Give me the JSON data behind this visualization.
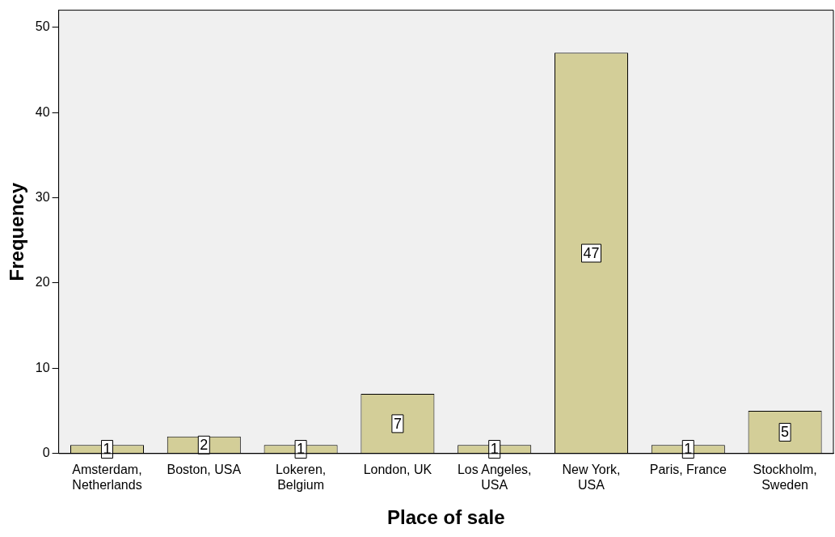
{
  "chart_data": {
    "type": "bar",
    "xlabel": "Place of sale",
    "ylabel": "Frequency",
    "categories": [
      "Amsterdam, Netherlands",
      "Boston, USA",
      "Lokeren, Belgium",
      "London, UK",
      "Los Angeles, USA",
      "New York, USA",
      "Paris, France",
      "Stockholm, Sweden"
    ],
    "values": [
      1,
      2,
      1,
      7,
      1,
      47,
      1,
      5
    ],
    "color": "#d3ce98",
    "ylim": [
      0,
      52
    ],
    "yticks": [
      0,
      10,
      20,
      30,
      40,
      50
    ],
    "grid": false,
    "legend": false,
    "data_labels": true
  }
}
